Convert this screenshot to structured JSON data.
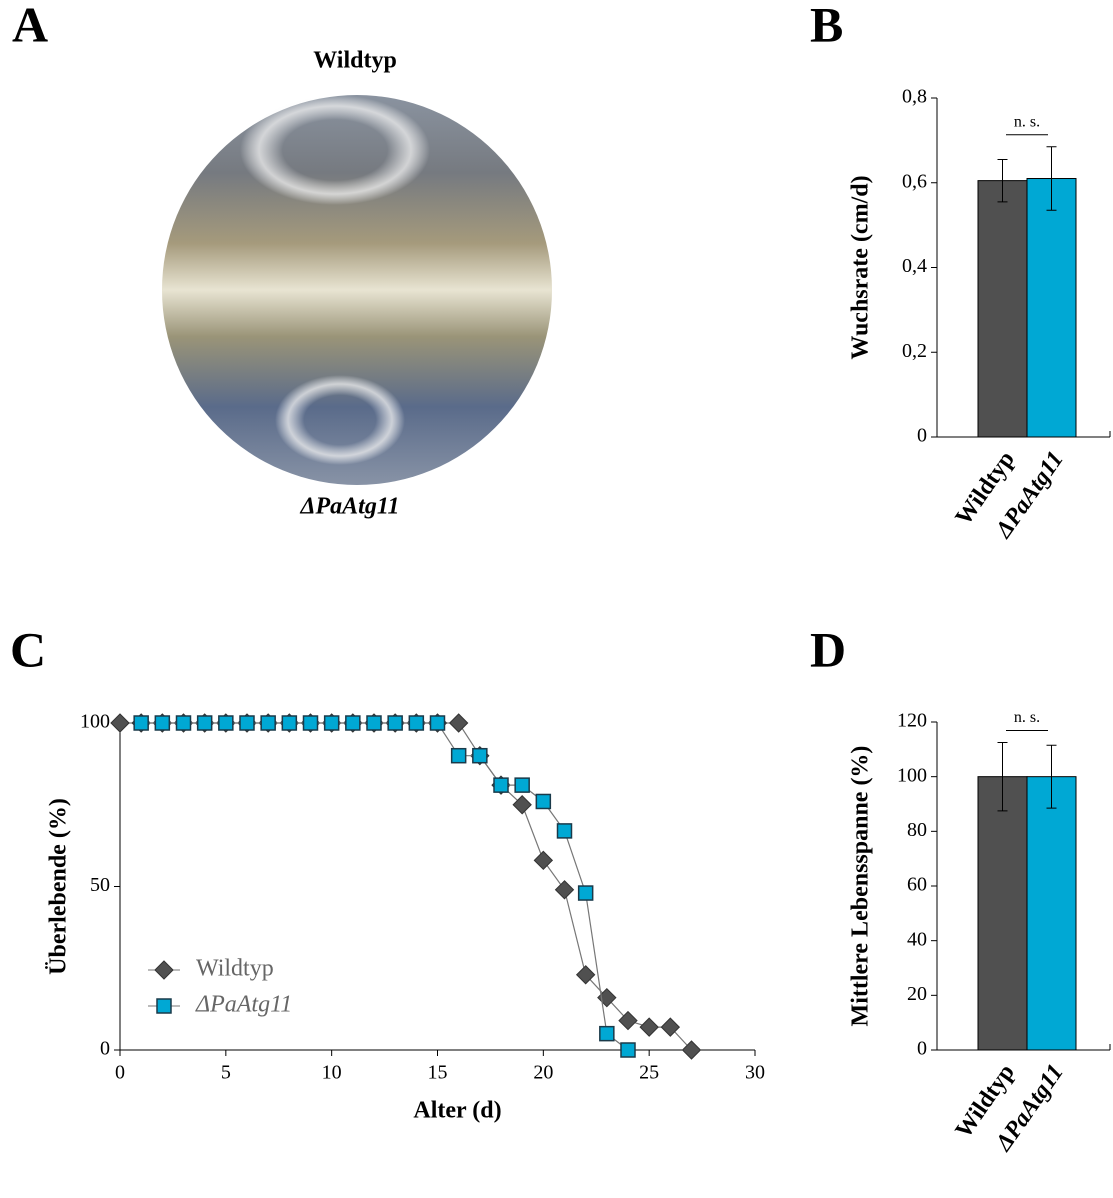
{
  "panel_a": {
    "label": "A",
    "top_label": "Wildtyp",
    "bottom_label": "ΔPaAtg11"
  },
  "chart_data": [
    {
      "type": "bar",
      "panel": "B",
      "ylabel": "Wuchsrate (cm/d)",
      "annotation": "n. s.",
      "categories": [
        "Wildtyp",
        "ΔPaAtg11"
      ],
      "values": [
        0.605,
        0.61
      ],
      "errors": [
        0.05,
        0.075
      ],
      "colors": [
        "#505050",
        "#00a8d4"
      ],
      "ylim": [
        0,
        0.8
      ],
      "yticks": [
        0,
        {
          "value": 0.2,
          "label": "0,2"
        },
        {
          "value": 0.4,
          "label": "0,4"
        },
        {
          "value": 0.6,
          "label": "0,6"
        },
        {
          "value": 0.8,
          "label": "0,8"
        }
      ]
    },
    {
      "type": "line",
      "panel": "C",
      "xlabel": "Alter (d)",
      "ylabel": "Überlebende (%)",
      "xlim": [
        0,
        30
      ],
      "xticks": [
        0,
        5,
        10,
        15,
        20,
        25,
        30
      ],
      "ylim": [
        0,
        100
      ],
      "yticks": [
        0,
        50,
        100
      ],
      "series": [
        {
          "name": "Wildtyp",
          "color": "#505050",
          "marker": "diamond",
          "x": [
            0,
            1,
            2,
            3,
            4,
            5,
            6,
            7,
            8,
            9,
            10,
            11,
            12,
            13,
            14,
            15,
            16,
            17,
            18,
            19,
            20,
            21,
            22,
            23,
            24,
            25,
            26,
            27
          ],
          "values": [
            100,
            100,
            100,
            100,
            100,
            100,
            100,
            100,
            100,
            100,
            100,
            100,
            100,
            100,
            100,
            100,
            100,
            90,
            81,
            75,
            58,
            49,
            23,
            16,
            9,
            7,
            7,
            0
          ]
        },
        {
          "name": "ΔPaAtg11",
          "color": "#00a8d4",
          "marker": "square",
          "x": [
            1,
            2,
            3,
            4,
            5,
            6,
            7,
            8,
            9,
            10,
            11,
            12,
            13,
            14,
            15,
            16,
            17,
            18,
            19,
            20,
            21,
            22,
            23,
            24
          ],
          "values": [
            100,
            100,
            100,
            100,
            100,
            100,
            100,
            100,
            100,
            100,
            100,
            100,
            100,
            100,
            100,
            90,
            90,
            81,
            81,
            76,
            67,
            48,
            5,
            0
          ]
        }
      ]
    },
    {
      "type": "bar",
      "panel": "D",
      "ylabel": "Mittlere Lebensspanne (%)",
      "annotation": "n. s.",
      "categories": [
        "Wildtyp",
        "ΔPaAtg11"
      ],
      "values": [
        100,
        100
      ],
      "errors": [
        12.5,
        11.5
      ],
      "colors": [
        "#505050",
        "#00a8d4"
      ],
      "ylim": [
        0,
        120
      ],
      "yticks": [
        0,
        20,
        40,
        60,
        80,
        100,
        120
      ]
    }
  ]
}
